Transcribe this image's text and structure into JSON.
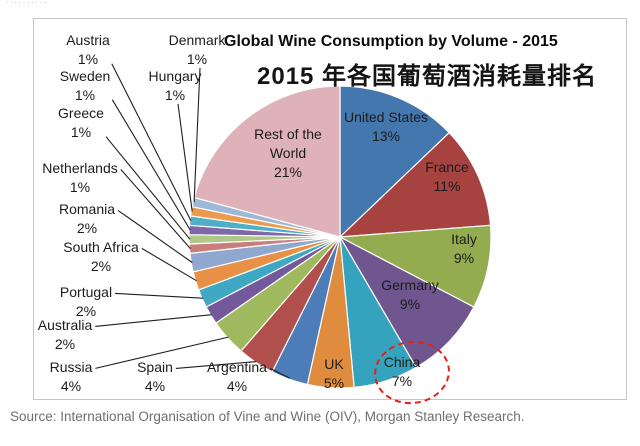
{
  "page": {
    "top_clipped_text": "..........",
    "source": "Source: International Organisation of Vine and Wine (OIV), Morgan Stanley Research."
  },
  "annotations": {
    "highlight_color": "#E32219",
    "highlighted_label": "China 7%"
  },
  "chart_data": {
    "type": "pie",
    "title": "Global Wine Consumption by Volume - 2015",
    "subtitle": "2015 年各国葡萄酒消耗量排名",
    "start_angle_deg": 0,
    "direction": "clockwise",
    "legend": "none",
    "label_style": "category name + percent",
    "highlighted_slice": "China",
    "slices": [
      {
        "name": "United States",
        "value": 13,
        "display": "13%",
        "color": "#4577AF",
        "label": "inside"
      },
      {
        "name": "France",
        "value": 11,
        "display": "11%",
        "color": "#A64340",
        "label": "inside"
      },
      {
        "name": "Italy",
        "value": 9,
        "display": "9%",
        "color": "#93AC50",
        "label": "inside"
      },
      {
        "name": "Germany",
        "value": 9,
        "display": "9%",
        "color": "#6F568F",
        "label": "inside"
      },
      {
        "name": "China",
        "value": 7,
        "display": "7%",
        "color": "#35A2BE",
        "label": "outside"
      },
      {
        "name": "UK",
        "value": 5,
        "display": "5%",
        "color": "#E08C3E",
        "label": "outside"
      },
      {
        "name": "Argentina",
        "value": 4,
        "display": "4%",
        "color": "#4C7DB8",
        "label": "callout"
      },
      {
        "name": "Spain",
        "value": 4,
        "display": "4%",
        "color": "#B14F4C",
        "label": "callout"
      },
      {
        "name": "Russia",
        "value": 4,
        "display": "4%",
        "color": "#9FB95E",
        "label": "callout"
      },
      {
        "name": "Australia",
        "value": 2,
        "display": "2%",
        "color": "#73589B",
        "label": "callout"
      },
      {
        "name": "Portugal",
        "value": 2,
        "display": "2%",
        "color": "#3FA8C4",
        "label": "callout"
      },
      {
        "name": "South Africa",
        "value": 2,
        "display": "2%",
        "color": "#E89146",
        "label": "callout"
      },
      {
        "name": "Romania",
        "value": 2,
        "display": "2%",
        "color": "#8FA8D0",
        "label": "callout"
      },
      {
        "name": "Netherlands",
        "value": 1,
        "display": "1%",
        "color": "#C97E7D",
        "label": "callout"
      },
      {
        "name": "Greece",
        "value": 1,
        "display": "1%",
        "color": "#AFC888",
        "label": "callout"
      },
      {
        "name": "Sweden",
        "value": 1,
        "display": "1%",
        "color": "#7E68A8",
        "label": "callout"
      },
      {
        "name": "Austria",
        "value": 1,
        "display": "1%",
        "color": "#4FAFC9",
        "label": "callout"
      },
      {
        "name": "Hungary",
        "value": 1,
        "display": "1%",
        "color": "#EE9A4D",
        "label": "callout"
      },
      {
        "name": "Denmark",
        "value": 1,
        "display": "1%",
        "color": "#9DB8D8",
        "label": "callout"
      },
      {
        "name": "Rest of the World",
        "value": 21,
        "display": "21%",
        "color": "#DFB2B9",
        "label": "inside"
      }
    ]
  }
}
